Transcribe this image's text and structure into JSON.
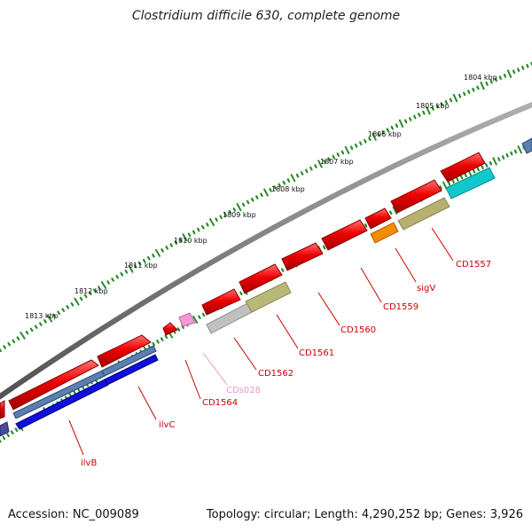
{
  "title": "Clostridium difficile 630, complete genome",
  "footer": {
    "accession": "Accession: NC_009089",
    "summary": "Topology: circular; Length: 4,290,252 bp; Genes: 3,926"
  },
  "colors": {
    "backbone": "#808080",
    "tick": "#2a8a2a",
    "gene": "#ee0000",
    "label_red": "#cc0000",
    "label_pink": "#e899c8"
  },
  "scale": {
    "unit": "kbp",
    "labels": [
      "1804 kbp",
      "1805 kbp",
      "1806 kbp",
      "1807 kbp",
      "1808 kbp",
      "1809 kbp",
      "1810 kbp",
      "1811 kbp",
      "1812 kbp",
      "1813 kbp"
    ]
  },
  "genes": [
    {
      "name": "ilvB",
      "color": "#ee0000"
    },
    {
      "name": "ilvC",
      "color": "#ee0000"
    },
    {
      "name": "CD1564",
      "color": "#ee0000"
    },
    {
      "name": "CDs028",
      "color": "#f29ad6"
    },
    {
      "name": "CD1562",
      "color": "#ee0000"
    },
    {
      "name": "CD1561",
      "color": "#ee0000"
    },
    {
      "name": "CD1560",
      "color": "#ee0000"
    },
    {
      "name": "CD1559",
      "color": "#ee0000"
    },
    {
      "name": "sigV",
      "color": "#ee0000"
    },
    {
      "name": "CD1557",
      "color": "#ee0000"
    }
  ],
  "feature_colors": [
    "#1010dd",
    "#5a7fb0",
    "#b8b8b8",
    "#b0b070",
    "#f28c00",
    "#10c8cc",
    "#4a4a9a"
  ]
}
